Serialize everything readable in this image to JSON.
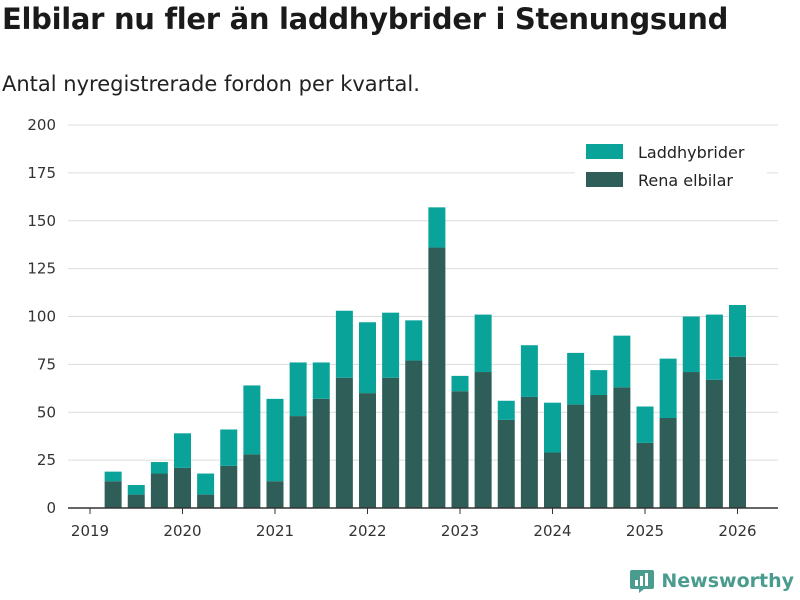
{
  "chart_data": {
    "type": "bar",
    "stacked": true,
    "title": "Elbilar nu fler än laddhybrider i Stenungsund",
    "subtitle": "Antal nyregistrerade fordon per kvartal.",
    "xlabel": "",
    "ylabel": "",
    "ylim": [
      0,
      200
    ],
    "yticks": [
      0,
      25,
      50,
      75,
      100,
      125,
      150,
      175,
      200
    ],
    "xticks": [
      "2019",
      "2020",
      "2021",
      "2022",
      "2023",
      "2024",
      "2025",
      "2026"
    ],
    "categories": [
      "2019 K2",
      "2019 K3",
      "2019 K4",
      "2020 K1",
      "2020 K2",
      "2020 K3",
      "2020 K4",
      "2021 K1",
      "2021 K2",
      "2021 K3",
      "2021 K4",
      "2022 K1",
      "2022 K2",
      "2022 K3",
      "2022 K4",
      "2023 K1",
      "2023 K2",
      "2023 K3",
      "2023 K4",
      "2024 K1",
      "2024 K2",
      "2024 K3",
      "2024 K4",
      "2025 K1",
      "2025 K2",
      "2025 K3",
      "2025 K4",
      "2026 K1"
    ],
    "series": [
      {
        "name": "Rena elbilar",
        "color": "#2e5e57",
        "values": [
          14,
          7,
          18,
          21,
          7,
          22,
          28,
          14,
          48,
          57,
          68,
          60,
          68,
          77,
          136,
          61,
          71,
          46,
          58,
          29,
          54,
          59,
          63,
          34,
          47,
          71,
          67,
          79
        ]
      },
      {
        "name": "Laddhybrider",
        "color": "#0aa39a",
        "values": [
          5,
          5,
          6,
          18,
          11,
          19,
          36,
          43,
          28,
          19,
          35,
          37,
          34,
          21,
          21,
          8,
          30,
          10,
          27,
          26,
          27,
          13,
          27,
          19,
          31,
          29,
          34,
          27
        ]
      }
    ],
    "legend": [
      "Laddhybrider",
      "Rena elbilar"
    ],
    "legend_position": "top-right",
    "grid": true
  },
  "brand": {
    "name": "Newsworthy",
    "color": "#4a9c8f",
    "icon": "bar-chart-logo-icon"
  }
}
